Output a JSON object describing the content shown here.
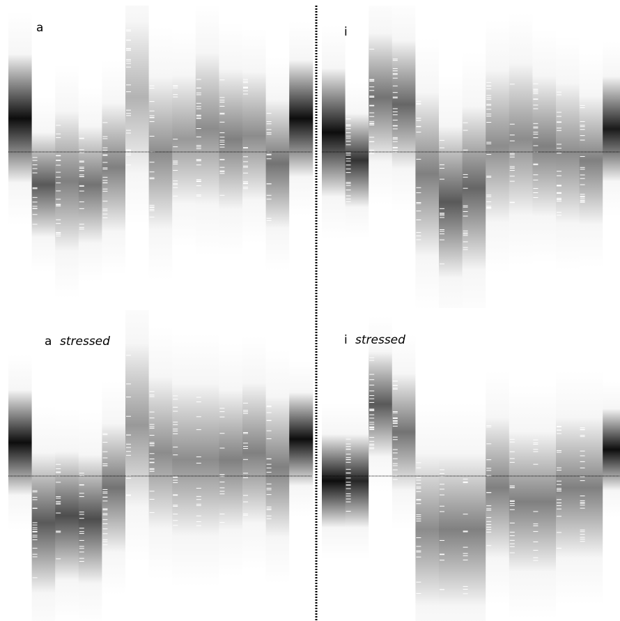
{
  "panels": [
    {
      "label": "a"
    },
    {
      "label": "i"
    },
    {
      "label": "a",
      "qualifier": "stressed"
    },
    {
      "label": "i",
      "qualifier": "stressed"
    }
  ]
}
